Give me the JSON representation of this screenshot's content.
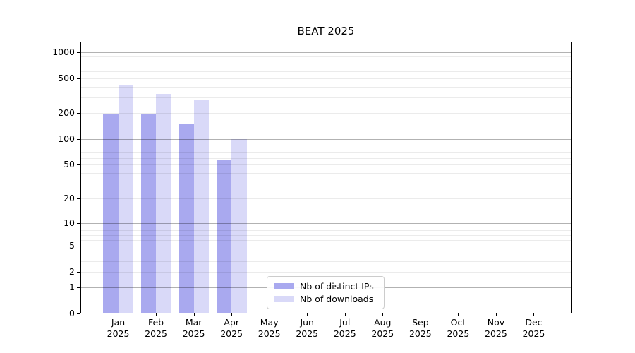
{
  "chart_data": {
    "type": "bar",
    "title": "BEAT 2025",
    "categories": [
      "Jan",
      "Feb",
      "Mar",
      "Apr",
      "May",
      "Jun",
      "Jul",
      "Aug",
      "Sep",
      "Oct",
      "Nov",
      "Dec"
    ],
    "category_year": "2025",
    "series": [
      {
        "name": "Nb of distinct IPs",
        "color": "#a9a9ef",
        "values": [
          197,
          192,
          151,
          57,
          0,
          0,
          0,
          0,
          0,
          0,
          0,
          0
        ]
      },
      {
        "name": "Nb of downloads",
        "color": "#d9d9f8",
        "values": [
          418,
          332,
          288,
          100,
          0,
          0,
          0,
          0,
          0,
          0,
          0,
          0
        ]
      }
    ],
    "xlabel": "",
    "ylabel": "",
    "yscale": "log1p",
    "ylim": [
      0,
      1325
    ],
    "yticks": [
      0,
      1,
      2,
      5,
      10,
      20,
      50,
      100,
      200,
      500,
      1000
    ],
    "grid": "horizontal major and minor gridlines, drawn over bars",
    "minor_grid_steps": [
      2,
      3,
      4,
      5,
      6,
      7,
      8,
      9
    ],
    "major_grid_values": [
      1,
      10,
      100,
      1000
    ],
    "legend_position": "lower center inside plot",
    "bar_group_width_fraction": 0.8
  }
}
